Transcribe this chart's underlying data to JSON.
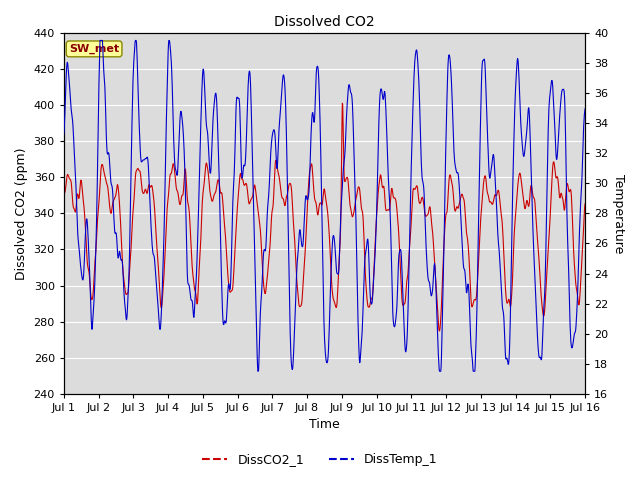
{
  "title": "Dissolved CO2",
  "xlabel": "Time",
  "ylabel_left": "Dissolved CO2 (ppm)",
  "ylabel_right": "Temperature",
  "ylim_left": [
    240,
    440
  ],
  "ylim_right": [
    16,
    40
  ],
  "xlim": [
    0,
    15
  ],
  "xtick_labels": [
    "Jul 1",
    "Jul 2",
    "Jul 3",
    "Jul 4",
    "Jul 5",
    "Jul 6",
    "Jul 7",
    "Jul 8",
    "Jul 9",
    "Jul 10",
    "Jul 11",
    "Jul 12",
    "Jul 13",
    "Jul 14",
    "Jul 15",
    "Jul 16"
  ],
  "xtick_positions": [
    0,
    1,
    2,
    3,
    4,
    5,
    6,
    7,
    8,
    9,
    10,
    11,
    12,
    13,
    14,
    15
  ],
  "co2_color": "#cc0000",
  "temp_color": "#0000cc",
  "background_color": "#dcdcdc",
  "fig_background": "#ffffff",
  "legend_label_co2": "DissCO2_1",
  "legend_label_temp": "DissTemp_1",
  "station_label": "SW_met",
  "yticks_left": [
    240,
    260,
    280,
    300,
    320,
    340,
    360,
    380,
    400,
    420,
    440
  ],
  "yticks_right": [
    16,
    18,
    20,
    22,
    24,
    26,
    28,
    30,
    32,
    34,
    36,
    38,
    40
  ],
  "grid_color": "#ffffff",
  "title_fontsize": 10,
  "axis_fontsize": 9,
  "tick_fontsize": 8
}
